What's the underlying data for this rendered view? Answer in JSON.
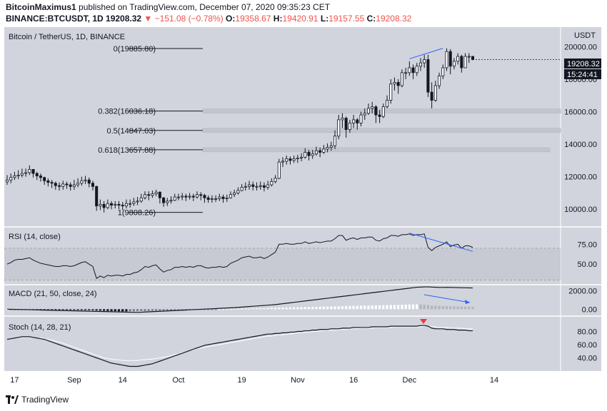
{
  "header": {
    "author": "BitcoinMaximus1",
    "published": "published on TradingView.com, December 07, 2020 09:35:23 CET",
    "symbol": "BINANCE:BTCUSDT, 1D",
    "last": "19208.32",
    "change": "▼ −151.08 (−0.78%)",
    "o_label": "O:",
    "o_val": "19358.67",
    "h_label": "H:",
    "h_val": "19420.91",
    "l_label": "L:",
    "l_val": "19157.55",
    "c_label": "C:",
    "c_val": "19208.32"
  },
  "footer": {
    "brand": "TradingView"
  },
  "colors": {
    "panel_bg": "#d1d4dc",
    "candle_up": "#ffffff",
    "candle_down": "#131722",
    "accent_blue": "#2962ff",
    "red_marker": "#f23645"
  },
  "chart_data": [
    {
      "type": "candlestick",
      "title": "Bitcoin / TetherUS, 1D, BINANCE",
      "unit": "USDT",
      "ylim": [
        9000,
        21200
      ],
      "y_ticks": [
        10000,
        12000,
        14000,
        16000,
        18000,
        20000
      ],
      "y_tick_labels": [
        "10000.00",
        "12000.00",
        "14000.00",
        "16000.00",
        "18000.00",
        "20000.00"
      ],
      "x_tick_labels": [
        "17",
        "Sep",
        "14",
        "Oct",
        "19",
        "Nov",
        "16",
        "Dec",
        "14"
      ],
      "last_price_label": "19208.32",
      "countdown_label": "15:24:41",
      "close": [
        11800,
        11950,
        12050,
        12100,
        12200,
        12250,
        12450,
        12200,
        12050,
        11950,
        11750,
        11650,
        11600,
        11450,
        11400,
        11550,
        11500,
        11400,
        11500,
        11600,
        11750,
        11800,
        11600,
        11400,
        10200,
        10300,
        10100,
        10350,
        10250,
        10300,
        10250,
        10200,
        10350,
        10350,
        10450,
        10500,
        10700,
        10900,
        10850,
        10950,
        11050,
        10700,
        10400,
        10500,
        10550,
        10750,
        10750,
        10800,
        10750,
        10800,
        10750,
        10900,
        10850,
        10700,
        10600,
        10650,
        10650,
        10750,
        10650,
        10700,
        10900,
        11000,
        11150,
        11350,
        11400,
        11500,
        11400,
        11400,
        11450,
        11350,
        11500,
        11700,
        11900,
        12900,
        12950,
        13100,
        13000,
        13100,
        13150,
        13200,
        13500,
        13300,
        13400,
        13600,
        13500,
        13700,
        13800,
        13900,
        14500,
        15500,
        15600,
        14900,
        15300,
        15500,
        15300,
        15800,
        15900,
        16200,
        16300,
        15800,
        15700,
        16300,
        16700,
        17700,
        17800,
        17600,
        18400,
        18400,
        18700,
        18400,
        18800,
        19000,
        19200,
        17200,
        16700,
        17600,
        18200,
        18700,
        19700,
        18800,
        19100,
        19400,
        18700,
        19400,
        19400,
        19208.32
      ],
      "high": [
        12100,
        12200,
        12300,
        12400,
        12500,
        12500,
        12700,
        12450,
        12300,
        12200,
        12000,
        11900,
        11800,
        11700,
        11650,
        11750,
        11700,
        11650,
        11800,
        11900,
        12000,
        12050,
        11950,
        11750,
        11450,
        10600,
        10500,
        10600,
        10500,
        10500,
        10500,
        10450,
        10600,
        10600,
        10700,
        10750,
        10950,
        11100,
        11100,
        11150,
        11200,
        11100,
        10750,
        10700,
        10800,
        10950,
        10950,
        11000,
        10950,
        11000,
        10950,
        11100,
        11050,
        10950,
        10850,
        10850,
        10850,
        10950,
        10900,
        10900,
        11100,
        11200,
        11350,
        11550,
        11650,
        11750,
        11700,
        11650,
        11700,
        11650,
        11750,
        11900,
        12100,
        13100,
        13200,
        13300,
        13250,
        13300,
        13350,
        13450,
        13750,
        13650,
        13650,
        13850,
        13800,
        13950,
        14050,
        14150,
        14850,
        15800,
        15900,
        15700,
        15500,
        15800,
        15600,
        16000,
        16200,
        16500,
        16600,
        16400,
        16100,
        16500,
        17000,
        18000,
        18100,
        18000,
        18600,
        18700,
        19100,
        18900,
        19000,
        19300,
        19500,
        19500,
        17800,
        17900,
        18400,
        18900,
        19900,
        19850,
        19300,
        19600,
        19500,
        19600,
        19600,
        19420.91
      ],
      "low": [
        11500,
        11600,
        11800,
        11850,
        11950,
        12000,
        12100,
        11950,
        11800,
        11700,
        11500,
        11400,
        11300,
        11200,
        11150,
        11200,
        11250,
        11150,
        11200,
        11350,
        11450,
        11550,
        11350,
        11150,
        9900,
        9950,
        9800,
        10000,
        10000,
        10050,
        10000,
        9950,
        10050,
        10100,
        10200,
        10250,
        10400,
        10600,
        10550,
        10700,
        10800,
        10350,
        10150,
        10200,
        10350,
        10500,
        10550,
        10550,
        10500,
        10600,
        10500,
        10650,
        10550,
        10400,
        10400,
        10400,
        10450,
        10500,
        10400,
        10450,
        10650,
        10750,
        10900,
        11100,
        11150,
        11200,
        11150,
        11150,
        11200,
        11100,
        11200,
        11400,
        11600,
        11850,
        12600,
        12750,
        12750,
        12850,
        12850,
        12950,
        13100,
        13000,
        13100,
        13300,
        13200,
        13400,
        13500,
        13600,
        13700,
        14300,
        15000,
        14400,
        14700,
        15000,
        14900,
        15100,
        15500,
        15800,
        15900,
        15300,
        15300,
        15600,
        16200,
        16500,
        17300,
        17100,
        17500,
        18000,
        18200,
        18000,
        18200,
        18500,
        18700,
        16900,
        16200,
        16600,
        17400,
        18000,
        18500,
        18300,
        18600,
        18900,
        18400,
        18800,
        19000,
        19157.55
      ],
      "fibonacci": [
        {
          "label": "0(19885.80)",
          "price": 19885.8
        },
        {
          "label": "0.382(16036.18)",
          "price": 16036.18
        },
        {
          "label": "0.5(14847.03)",
          "price": 14847.03
        },
        {
          "label": "0.618(13657.88)",
          "price": 13657.88
        },
        {
          "label": "1(9808.26)",
          "price": 9808.26
        }
      ]
    },
    {
      "type": "line",
      "title": "RSI (14, close)",
      "ylim": [
        25,
        95
      ],
      "y_ticks": [
        50,
        75
      ],
      "y_tick_labels": [
        "50.00",
        "75.00"
      ],
      "values": [
        50,
        52,
        55,
        56,
        56,
        57,
        58,
        55,
        53,
        51,
        50,
        49,
        48,
        47,
        47,
        48,
        48,
        47,
        48,
        50,
        52,
        53,
        50,
        47,
        32,
        35,
        33,
        36,
        35,
        36,
        36,
        35,
        37,
        37,
        39,
        40,
        43,
        47,
        46,
        48,
        49,
        44,
        40,
        42,
        43,
        46,
        46,
        47,
        46,
        47,
        46,
        48,
        48,
        46,
        45,
        46,
        46,
        47,
        46,
        47,
        51,
        53,
        55,
        58,
        59,
        60,
        58,
        58,
        59,
        57,
        59,
        62,
        65,
        75,
        75,
        76,
        75,
        75,
        76,
        76,
        78,
        76,
        77,
        78,
        77,
        78,
        79,
        79,
        82,
        86,
        86,
        80,
        82,
        83,
        81,
        83,
        83,
        84,
        84,
        80,
        79,
        82,
        83,
        86,
        86,
        85,
        87,
        87,
        88,
        86,
        87,
        87,
        88,
        71,
        67,
        71,
        73,
        75,
        78,
        72,
        74,
        75,
        70,
        73,
        73,
        71
      ]
    },
    {
      "type": "bar+line",
      "title": "MACD (21, 50, close, 24)",
      "ylim": [
        -600,
        2600
      ],
      "y_ticks": [
        0,
        2000
      ],
      "y_tick_labels": [
        "0.00",
        "2000.00"
      ],
      "macd": [
        0,
        -10,
        -20,
        -30,
        -40,
        -50,
        -60,
        -70,
        -80,
        -90,
        -100,
        -110,
        -120,
        -130,
        -140,
        -150,
        -160,
        -170,
        -180,
        -190,
        -200,
        -210,
        -220,
        -230,
        -240,
        -250,
        -260,
        -270,
        -280,
        -290,
        -300,
        -310,
        -320,
        -330,
        -340,
        -350,
        -330,
        -310,
        -290,
        -270,
        -250,
        -230,
        -210,
        -190,
        -170,
        -150,
        -130,
        -110,
        -90,
        -70,
        -50,
        -30,
        -10,
        10,
        30,
        50,
        70,
        90,
        110,
        130,
        150,
        170,
        200,
        230,
        260,
        290,
        320,
        350,
        380,
        410,
        440,
        470,
        500,
        550,
        600,
        650,
        700,
        750,
        800,
        850,
        900,
        950,
        1000,
        1050,
        1100,
        1150,
        1200,
        1250,
        1300,
        1350,
        1400,
        1450,
        1500,
        1550,
        1600,
        1650,
        1700,
        1750,
        1800,
        1850,
        1900,
        1950,
        2000,
        2050,
        2100,
        2150,
        2200,
        2250,
        2300,
        2350,
        2400,
        2420,
        2440,
        2440,
        2420,
        2400,
        2380,
        2380,
        2390,
        2380,
        2370,
        2360,
        2350,
        2340,
        2330,
        2320
      ],
      "histogram": [
        0,
        -5,
        -10,
        -15,
        -20,
        -25,
        -30,
        -35,
        -40,
        -45,
        -50,
        -55,
        -60,
        -65,
        -70,
        -75,
        -80,
        -85,
        -90,
        -95,
        -100,
        -105,
        -110,
        -115,
        -140,
        -160,
        -180,
        -200,
        -210,
        -220,
        -230,
        -240,
        -250,
        -240,
        -230,
        -220,
        -210,
        -200,
        -190,
        -180,
        -170,
        -160,
        -150,
        -140,
        -130,
        -120,
        -110,
        -100,
        -90,
        -80,
        -70,
        -60,
        -50,
        -40,
        -30,
        -20,
        -10,
        0,
        10,
        20,
        30,
        40,
        50,
        60,
        70,
        80,
        90,
        100,
        110,
        120,
        130,
        140,
        150,
        160,
        170,
        180,
        190,
        200,
        210,
        220,
        230,
        240,
        250,
        260,
        270,
        280,
        290,
        300,
        310,
        320,
        330,
        340,
        350,
        360,
        370,
        380,
        390,
        400,
        410,
        420,
        430,
        440,
        450,
        460,
        470,
        480,
        490,
        500,
        510,
        520,
        530,
        520,
        500,
        450,
        400,
        380,
        360,
        340,
        330,
        320,
        310,
        300,
        290,
        280,
        270,
        260
      ]
    },
    {
      "type": "line",
      "title": "Stoch (14, 28, 21)",
      "ylim": [
        20,
        100
      ],
      "y_ticks": [
        40,
        60,
        80
      ],
      "y_tick_labels": [
        "40.00",
        "60.00",
        "80.00"
      ],
      "k": [
        68,
        69,
        70,
        71,
        72,
        72,
        72,
        71,
        70,
        69,
        68,
        66,
        64,
        62,
        60,
        58,
        56,
        54,
        52,
        50,
        48,
        46,
        44,
        42,
        40,
        38,
        36,
        34,
        32,
        31,
        30,
        29,
        28,
        27,
        27,
        27,
        28,
        29,
        30,
        31,
        33,
        35,
        37,
        39,
        41,
        43,
        45,
        47,
        49,
        51,
        53,
        55,
        57,
        59,
        60,
        61,
        62,
        63,
        64,
        65,
        66,
        67,
        68,
        69,
        70,
        71,
        72,
        73,
        74,
        75,
        76,
        76,
        77,
        77,
        78,
        78,
        79,
        79,
        80,
        80,
        81,
        81,
        82,
        82,
        83,
        83,
        83,
        84,
        84,
        84,
        85,
        85,
        85,
        86,
        86,
        86,
        86,
        86,
        87,
        87,
        87,
        87,
        87,
        88,
        88,
        88,
        88,
        88,
        88,
        88,
        88,
        89,
        89,
        88,
        85,
        84,
        84,
        84,
        83,
        83,
        83,
        82,
        82,
        82,
        81,
        81
      ],
      "d": [
        68,
        69,
        70,
        71,
        71,
        71,
        71,
        71,
        70,
        70,
        69,
        68,
        67,
        65,
        64,
        62,
        60,
        58,
        56,
        54,
        52,
        50,
        48,
        46,
        44,
        42,
        40,
        39,
        38,
        37,
        37,
        36,
        36,
        36,
        36,
        36,
        37,
        37,
        38,
        38,
        39,
        40,
        41,
        42,
        43,
        45,
        46,
        48,
        49,
        51,
        52,
        54,
        55,
        56,
        57,
        58,
        59,
        60,
        61,
        62,
        63,
        64,
        65,
        66,
        67,
        68,
        69,
        70,
        71,
        72,
        73,
        73,
        74,
        75,
        75,
        76,
        76,
        77,
        78,
        78,
        79,
        79,
        80,
        80,
        81,
        81,
        82,
        82,
        82,
        83,
        83,
        83,
        84,
        84,
        84,
        85,
        85,
        85,
        85,
        86,
        86,
        86,
        86,
        86,
        87,
        87,
        87,
        87,
        87,
        87,
        87,
        87,
        88,
        88,
        87,
        87,
        86,
        86,
        86,
        85,
        85,
        85,
        85,
        84,
        84,
        84
      ]
    }
  ]
}
